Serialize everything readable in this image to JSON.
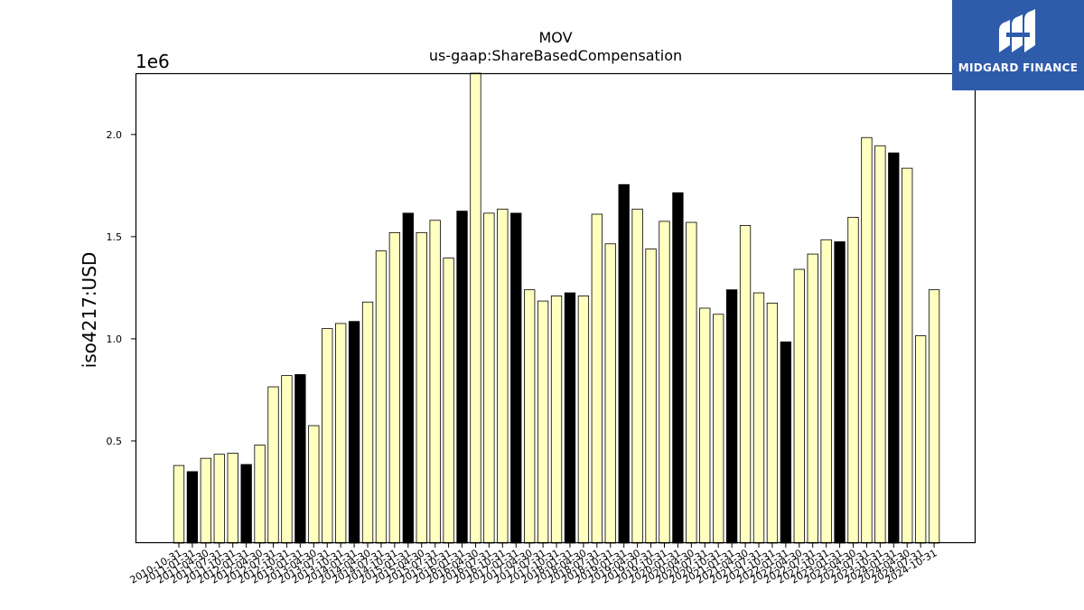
{
  "chart_data": {
    "type": "bar",
    "title": "MOV",
    "subtitle": "us-gaap:ShareBasedCompensation",
    "ylabel": "iso4217:USD",
    "y_offset_label": "1e6",
    "ylim": [
      0,
      2300000
    ],
    "yticks": [
      0.5,
      1.0,
      1.5,
      2.0
    ],
    "ytick_labels": [
      "0.5",
      "1.0",
      "1.5",
      "2.0"
    ],
    "grid": false,
    "colors": {
      "quarterly": "#ffffc0",
      "annual": "#000000",
      "edge": "#000000"
    },
    "categories": [
      "2010-10-31",
      "2011-01-31",
      "2011-04-30",
      "2011-07-31",
      "2011-10-31",
      "2012-01-31",
      "2012-04-30",
      "2012-07-31",
      "2012-10-31",
      "2013-01-31",
      "2013-04-30",
      "2013-07-31",
      "2013-10-31",
      "2014-01-31",
      "2014-04-30",
      "2014-07-31",
      "2014-10-31",
      "2015-01-31",
      "2015-04-30",
      "2015-07-31",
      "2015-10-31",
      "2016-01-31",
      "2016-04-30",
      "2016-07-31",
      "2016-10-31",
      "2017-01-31",
      "2017-04-30",
      "2017-07-31",
      "2017-10-31",
      "2018-01-31",
      "2018-04-30",
      "2018-07-31",
      "2018-10-31",
      "2019-01-31",
      "2019-04-30",
      "2019-07-31",
      "2019-10-31",
      "2020-01-31",
      "2020-04-30",
      "2020-07-31",
      "2020-10-31",
      "2021-01-31",
      "2021-04-30",
      "2021-07-31",
      "2021-10-31",
      "2022-01-31",
      "2022-04-30",
      "2022-07-31",
      "2022-10-31",
      "2023-01-31",
      "2023-04-30",
      "2023-07-31",
      "2023-10-31",
      "2024-01-31",
      "2024-04-30",
      "2024-07-31",
      "2024-10-31"
    ],
    "values": [
      380000,
      350000,
      415000,
      435000,
      440000,
      385000,
      480000,
      765000,
      820000,
      825000,
      575000,
      1050000,
      1075000,
      1085000,
      1180000,
      1430000,
      1520000,
      1615000,
      1520000,
      1580000,
      1395000,
      1625000,
      2310000,
      1615000,
      1635000,
      1615000,
      1240000,
      1185000,
      1210000,
      1225000,
      1210000,
      1610000,
      1465000,
      1755000,
      1635000,
      1440000,
      1575000,
      1715000,
      1570000,
      1150000,
      1120000,
      1240000,
      1555000,
      1225000,
      1175000,
      985000,
      1340000,
      1415000,
      1485000,
      1475000,
      1595000,
      1985000,
      1945000,
      1910000,
      1835000,
      1015000,
      1240000
    ],
    "series_type": [
      "q",
      "a",
      "q",
      "q",
      "q",
      "a",
      "q",
      "q",
      "q",
      "a",
      "q",
      "q",
      "q",
      "a",
      "q",
      "q",
      "q",
      "a",
      "q",
      "q",
      "q",
      "a",
      "q",
      "q",
      "q",
      "a",
      "q",
      "q",
      "q",
      "a",
      "q",
      "q",
      "q",
      "a",
      "q",
      "q",
      "q",
      "a",
      "q",
      "q",
      "q",
      "a",
      "q",
      "q",
      "q",
      "a",
      "q",
      "q",
      "q",
      "a",
      "q",
      "q",
      "q",
      "a",
      "q",
      "q",
      "q"
    ]
  },
  "logo": {
    "text": "MIDGARD FINANCE"
  }
}
